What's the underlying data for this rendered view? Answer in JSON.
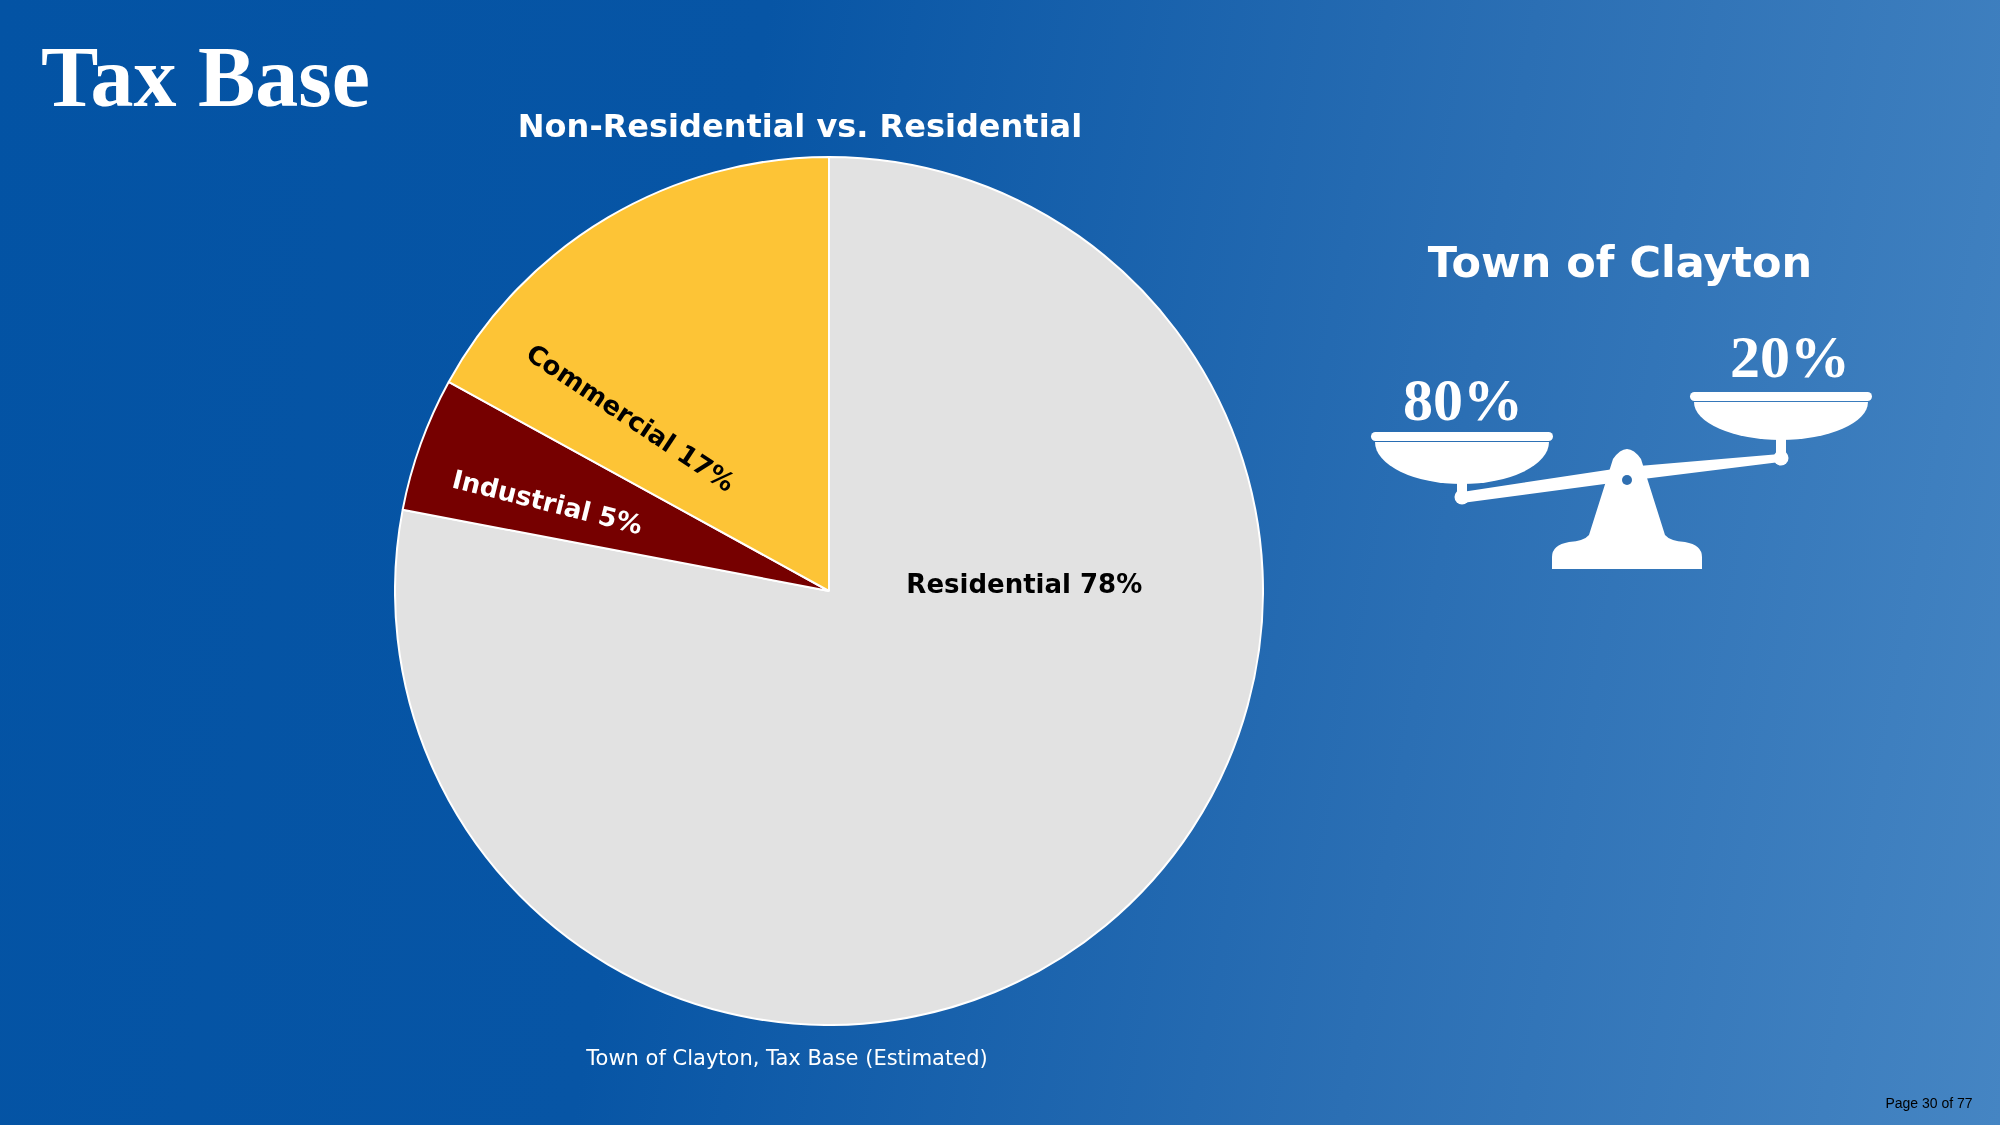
{
  "chart_data": {
    "type": "pie",
    "title": "Tax Base",
    "subtitle": "Non-Residential vs. Residential",
    "categories": [
      "Residential",
      "Industrial",
      "Commercial"
    ],
    "values": [
      78,
      5,
      17
    ],
    "colors": [
      "#e2e2e2",
      "#760000",
      "#fdc436"
    ],
    "value_labels": [
      "78%",
      "5%",
      "17%"
    ],
    "annotations": [
      "Town of Clayton, Tax Base (Estimated)",
      "Town of Clayton",
      "80%",
      "20%",
      "Page 30 of 77"
    ]
  }
}
